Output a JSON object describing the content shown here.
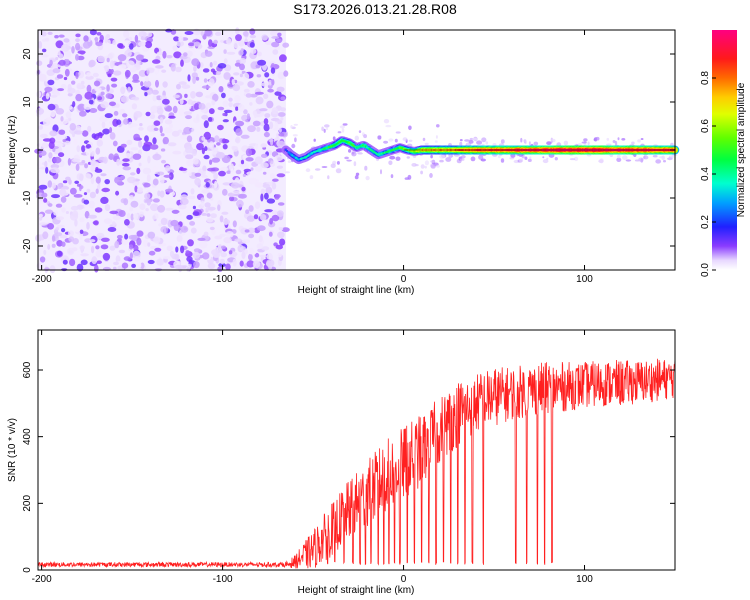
{
  "title": "S173.2026.013.21.28.R08",
  "chart_data": [
    {
      "type": "heatmap",
      "xlabel": "Height of straight line (km)",
      "ylabel": "Frequency (Hz)",
      "xlim": [
        -202,
        150
      ],
      "ylim": [
        -25,
        25
      ],
      "xticks": [
        -200,
        -100,
        0,
        100
      ],
      "yticks": [
        -20,
        -10,
        0,
        10,
        20
      ],
      "noise_region": {
        "x_from": -202,
        "x_to": -65
      },
      "signal_ridge": {
        "x": [
          -65,
          -62,
          -58,
          -54,
          -50,
          -46,
          -42,
          -38,
          -34,
          -30,
          -26,
          -22,
          -18,
          -14,
          -10,
          -6,
          -2,
          2,
          6,
          10,
          20,
          40,
          60,
          80,
          100,
          120,
          150
        ],
        "frequency": [
          0,
          -1,
          -2,
          -1.5,
          -0.5,
          0,
          0.5,
          1,
          2,
          1.5,
          0.5,
          1,
          0,
          -1,
          -0.5,
          0,
          0.5,
          0,
          -0.3,
          0,
          0,
          0,
          0,
          0,
          0,
          0,
          0
        ],
        "amplitude": [
          0.2,
          0.3,
          0.35,
          0.35,
          0.35,
          0.4,
          0.45,
          0.5,
          0.5,
          0.5,
          0.45,
          0.45,
          0.4,
          0.4,
          0.4,
          0.45,
          0.5,
          0.55,
          0.6,
          0.7,
          0.75,
          0.85,
          0.9,
          0.95,
          0.98,
          0.95,
          0.9
        ]
      },
      "colorbar": {
        "label": "Normalized spectral amplitude",
        "range": [
          0,
          1
        ],
        "ticks": [
          "0.0",
          "0.2",
          "0.4",
          "0.6",
          "0.8"
        ],
        "tick_values": [
          0,
          0.2,
          0.4,
          0.6,
          0.8
        ]
      }
    },
    {
      "type": "line",
      "xlabel": "Height of straight line (km)",
      "ylabel": "SNR (10 * v/v)",
      "xlim": [
        -202,
        150
      ],
      "ylim": [
        0,
        720
      ],
      "xticks": [
        -200,
        -100,
        0,
        100
      ],
      "yticks": [
        0,
        200,
        400,
        600
      ],
      "color": "#ff2020",
      "envelope": {
        "x": [
          -202,
          -65,
          -60,
          -50,
          -40,
          -30,
          -20,
          -10,
          0,
          10,
          20,
          30,
          40,
          50,
          60,
          70,
          80,
          90,
          100,
          110,
          120,
          130,
          140,
          150
        ],
        "baseline": [
          15,
          15,
          25,
          60,
          120,
          180,
          230,
          280,
          320,
          360,
          420,
          470,
          500,
          520,
          530,
          540,
          545,
          550,
          555,
          560,
          560,
          565,
          570,
          575
        ],
        "noise": [
          8,
          8,
          20,
          60,
          80,
          90,
          100,
          110,
          110,
          110,
          100,
          100,
          90,
          90,
          80,
          80,
          80,
          75,
          70,
          70,
          70,
          65,
          65,
          60
        ]
      },
      "dropouts_x": [
        -42,
        -38,
        -33,
        -28,
        -24,
        -21,
        -18,
        -14,
        -11,
        -8,
        -5,
        -2,
        2,
        6,
        10,
        14,
        18,
        22,
        26,
        30,
        34,
        38,
        44,
        62,
        68,
        74,
        78,
        82
      ]
    }
  ]
}
